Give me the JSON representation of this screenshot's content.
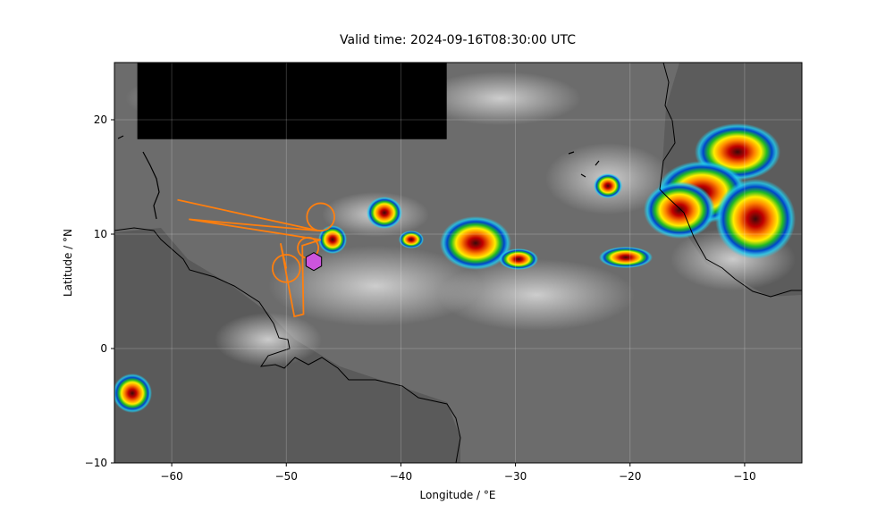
{
  "title": "Valid time: 2024-09-16T08:30:00 UTC",
  "map": {
    "xlabel": "Longitude / °E",
    "ylabel": "Latitude / °N",
    "xlim": [
      -65,
      -5
    ],
    "ylim": [
      -10,
      25
    ],
    "xticks": [
      -60,
      -50,
      -40,
      -30,
      -20,
      -10
    ],
    "yticks": [
      -10,
      0,
      10,
      20
    ],
    "xtick_labels": [
      "−60",
      "−50",
      "−40",
      "−30",
      "−20",
      "−10"
    ],
    "ytick_labels": [
      "−10",
      "0",
      "10",
      "20"
    ],
    "grid": true,
    "background": "infrared satellite imagery (grayscale with enhanced colour for cold cloud tops)",
    "colors": {
      "flight_track": "#ff7f0e",
      "marker": "#cc55dd",
      "no_data_block": "#000000",
      "coastline": "#000000"
    },
    "flight_track": {
      "points": [
        [
          -59.5,
          13.0
        ],
        [
          -47.2,
          10.3
        ],
        [
          -58.5,
          11.3
        ],
        [
          -47.0,
          9.5
        ],
        [
          -48.6,
          9.0
        ],
        [
          -48.5,
          3.0
        ],
        [
          -49.3,
          2.8
        ],
        [
          -50.5,
          9.2
        ],
        [
          -50.0,
          7.0
        ]
      ],
      "circles": [
        {
          "lon": -47.0,
          "lat": 11.5,
          "r_deg": 1.2
        },
        {
          "lon": -50.0,
          "lat": 7.0,
          "r_deg": 1.2
        },
        {
          "lon": -48.1,
          "lat": 8.8,
          "r_deg": 0.9
        }
      ]
    },
    "marker": {
      "shape": "hexagon",
      "lon": -47.6,
      "lat": 7.6
    },
    "no_data_region": {
      "lon_min": -63,
      "lon_max": -36,
      "lat_min": 18.3,
      "lat_max": 25
    }
  }
}
